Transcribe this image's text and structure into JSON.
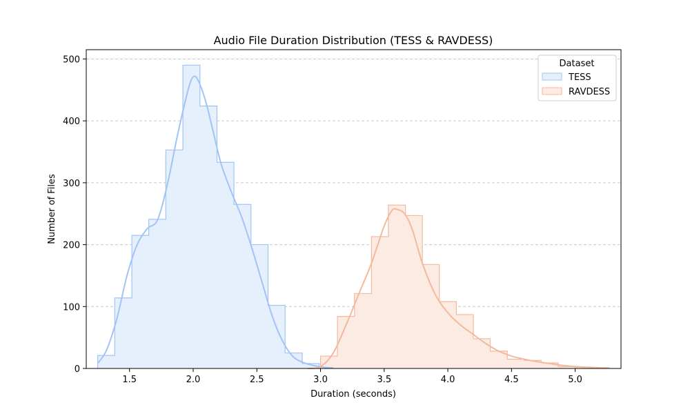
{
  "chart_data": {
    "type": "histogram",
    "title": "Audio File Duration Distribution (TESS & RAVDESS)",
    "xlabel": "Duration (seconds)",
    "ylabel": "Number of Files",
    "xlim": [
      1.16,
      5.36
    ],
    "ylim": [
      0,
      515
    ],
    "xticks": [
      1.5,
      2.0,
      2.5,
      3.0,
      3.5,
      4.0,
      4.5,
      5.0
    ],
    "xtick_labels": [
      "1.5",
      "2.0",
      "2.5",
      "3.0",
      "3.5",
      "4.0",
      "4.5",
      "5.0"
    ],
    "yticks": [
      0,
      100,
      200,
      300,
      400,
      500
    ],
    "ytick_labels": [
      "0",
      "100",
      "200",
      "300",
      "400",
      "500"
    ],
    "grid": "y-dashed",
    "legend": {
      "title": "Dataset",
      "placement": "top-right"
    },
    "series": [
      {
        "name": "TESS",
        "color": "#a1c4f4",
        "fill": "#e6effc",
        "bin_edges": [
          1.25,
          1.384,
          1.518,
          1.651,
          1.785,
          1.919,
          2.053,
          2.187,
          2.32,
          2.454,
          2.588,
          2.722,
          2.856,
          2.99
        ],
        "counts": [
          21,
          114,
          215,
          241,
          353,
          490,
          424,
          333,
          265,
          200,
          102,
          25,
          8
        ],
        "kde_x": [
          1.25,
          1.32,
          1.4,
          1.48,
          1.56,
          1.64,
          1.72,
          1.8,
          1.88,
          1.96,
          2.0,
          2.04,
          2.1,
          2.16,
          2.22,
          2.3,
          2.38,
          2.46,
          2.54,
          2.62,
          2.7,
          2.78,
          2.86,
          2.94,
          3.02,
          3.1
        ],
        "kde_y": [
          8,
          30,
          80,
          150,
          200,
          226,
          240,
          300,
          380,
          450,
          471,
          465,
          430,
          380,
          330,
          285,
          245,
          195,
          140,
          85,
          45,
          20,
          10,
          5,
          2,
          1
        ]
      },
      {
        "name": "RAVDESS",
        "color": "#f4b89c",
        "fill": "#fcebe3",
        "bin_edges": [
          3.0,
          3.133,
          3.267,
          3.4,
          3.533,
          3.667,
          3.8,
          3.933,
          4.067,
          4.2,
          4.333,
          4.467,
          4.6,
          4.733,
          4.867,
          5.0,
          5.133,
          5.267
        ],
        "counts": [
          20,
          84,
          121,
          213,
          264,
          247,
          168,
          108,
          87,
          48,
          28,
          15,
          13,
          9,
          3,
          2,
          1
        ],
        "kde_x": [
          2.9,
          3.0,
          3.1,
          3.2,
          3.3,
          3.4,
          3.5,
          3.56,
          3.6,
          3.66,
          3.72,
          3.8,
          3.9,
          4.0,
          4.1,
          4.2,
          4.3,
          4.4,
          4.5,
          4.6,
          4.7,
          4.8,
          4.9,
          5.0,
          5.1,
          5.2,
          5.27
        ],
        "kde_y": [
          0,
          3,
          25,
          70,
          120,
          170,
          230,
          255,
          257,
          250,
          225,
          170,
          120,
          90,
          70,
          55,
          40,
          28,
          20,
          15,
          11,
          8,
          5,
          3,
          2,
          1,
          1
        ]
      }
    ]
  }
}
